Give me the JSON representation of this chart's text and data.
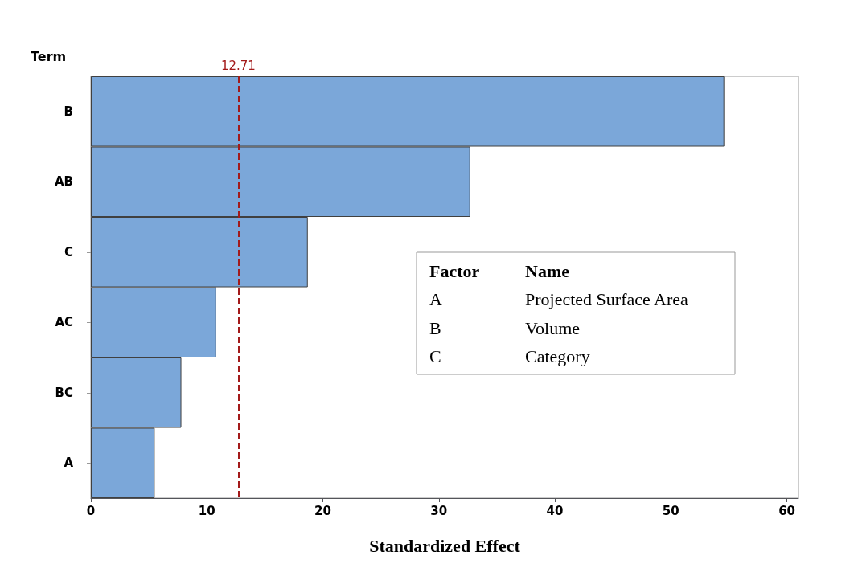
{
  "chart_data": {
    "type": "bar",
    "orientation": "horizontal",
    "ylabel": "Term",
    "xlabel": "Standardized Effect",
    "categories": [
      "B",
      "AB",
      "C",
      "AC",
      "BC",
      "A"
    ],
    "values": [
      54.6,
      32.7,
      18.7,
      10.8,
      7.8,
      5.5
    ],
    "color": "#7ba7d9",
    "xlim": [
      0,
      61
    ],
    "xticks": [
      0,
      10,
      20,
      30,
      40,
      50,
      60
    ],
    "grid": false,
    "ref_lines": [
      {
        "axis": "x",
        "value": 12.71,
        "label": "12.71",
        "color": "#a31a1a",
        "line_style": "dashed"
      }
    ],
    "annotations": [
      "Factor",
      "Name",
      "A",
      "Projected Surface Area",
      "B",
      "Volume",
      "C",
      "Category"
    ]
  }
}
